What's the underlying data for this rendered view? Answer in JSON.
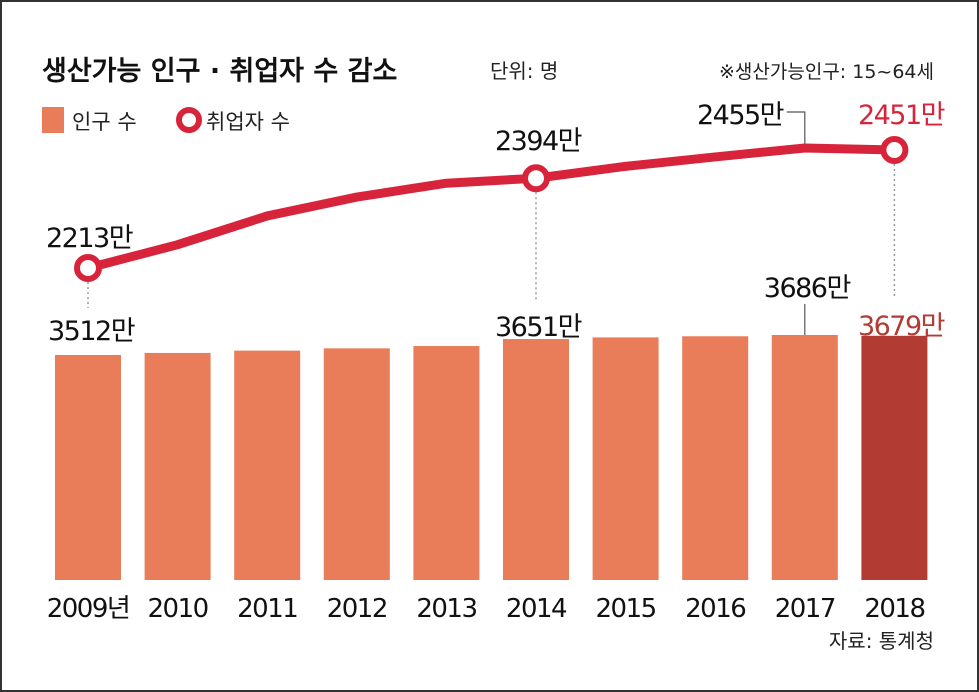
{
  "title": "생산가능 인구 · 취업자 수 감소",
  "unit_label": "단위: 명",
  "note": "※생산가능인구: 15~64세",
  "source": "자료: 통계청",
  "colors": {
    "bar": "#e97d5a",
    "bar_highlight": "#b23b33",
    "line": "#d8243b",
    "highlight_text": "#d8243b",
    "highlight_bar_text": "#b23b33"
  },
  "chart_data": {
    "type": "bar",
    "categories": [
      "2009년",
      "2010",
      "2011",
      "2012",
      "2013",
      "2014",
      "2015",
      "2016",
      "2017",
      "2018"
    ],
    "series": [
      {
        "name": "인구 수",
        "type": "bar",
        "values": [
          3512,
          3530,
          3550,
          3570,
          3590,
          3651,
          3665,
          3675,
          3686,
          3679
        ],
        "unit": "만"
      },
      {
        "name": "취업자 수",
        "type": "line",
        "values": [
          2213,
          2260,
          2318,
          2356,
          2384,
          2394,
          2418,
          2437,
          2455,
          2451
        ],
        "unit": "만"
      }
    ],
    "labels": {
      "bars": [
        {
          "index": 0,
          "text": "3512만"
        },
        {
          "index": 5,
          "text": "3651만"
        },
        {
          "index": 8,
          "text": "3686만"
        },
        {
          "index": 9,
          "text": "3679만"
        }
      ],
      "line": [
        {
          "index": 0,
          "text": "2213만"
        },
        {
          "index": 5,
          "text": "2394만"
        },
        {
          "index": 8,
          "text": "2455만"
        },
        {
          "index": 9,
          "text": "2451만"
        }
      ]
    },
    "highlight_index": 9,
    "legend": {
      "placement": "top-left",
      "items": [
        "인구 수",
        "취업자 수"
      ]
    },
    "grid": false
  }
}
